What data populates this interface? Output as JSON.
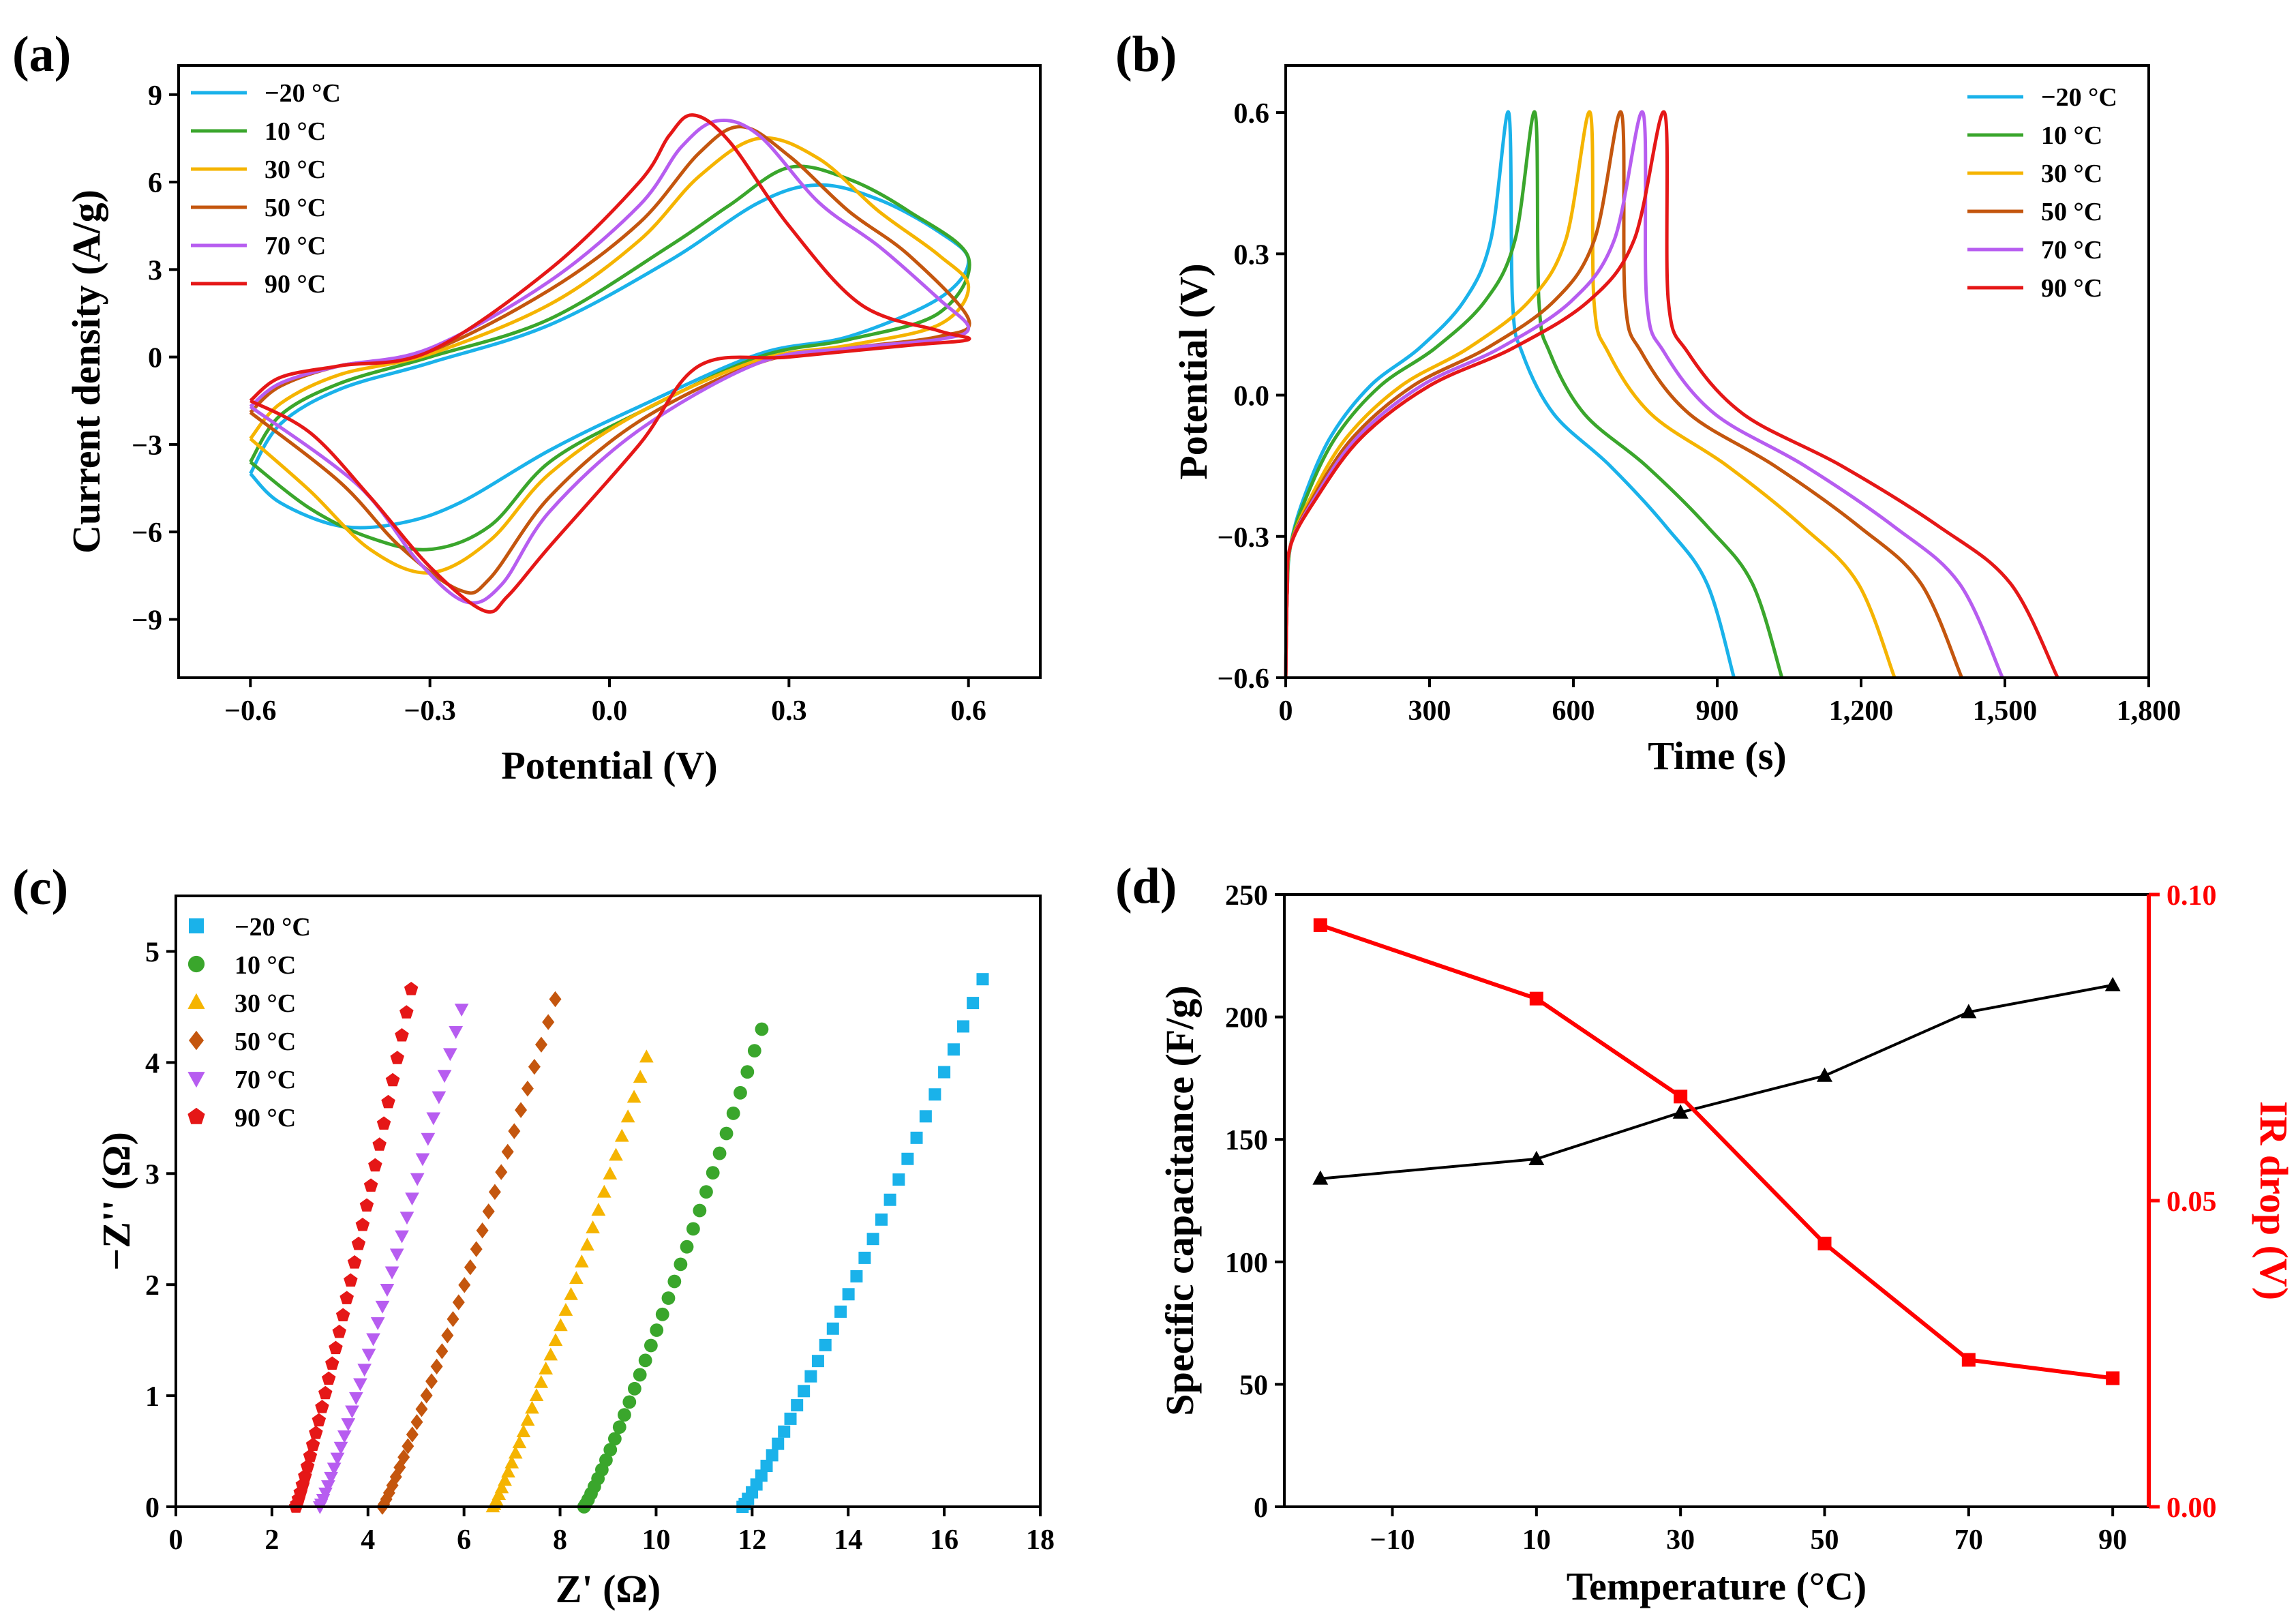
{
  "panels": {
    "a": {
      "label": "(a)"
    },
    "b": {
      "label": "(b)"
    },
    "c": {
      "label": "(c)"
    },
    "d": {
      "label": "(d)"
    }
  },
  "colors": {
    "-20": "#1ab2ea",
    "10": "#3aa62c",
    "30": "#f5b400",
    "50": "#c4560e",
    "70": "#b75df0",
    "90": "#e51717",
    "black": "#000000",
    "red": "#ff0000"
  },
  "legend_labels": [
    "−20 °C",
    "10 °C",
    "30 °C",
    "50 °C",
    "70 °C",
    "90 °C"
  ],
  "legend_labels_c": [
    " −20 °C",
    "10 °C",
    "30 °C",
    "50 °C",
    "70 °C",
    "90 °C"
  ],
  "chart_data": [
    {
      "id": "a",
      "type": "line",
      "title": "",
      "xlabel": "Potential (V)",
      "ylabel": "Current density (A/g)",
      "xlim": [
        -0.72,
        0.72
      ],
      "ylim": [
        -11,
        10
      ],
      "xticks": [
        -0.6,
        -0.3,
        0.0,
        0.3,
        0.6
      ],
      "xtick_labels": [
        "−0.6",
        "−0.3",
        "0.0",
        "0.3",
        "0.6"
      ],
      "yticks": [
        -9,
        -6,
        -3,
        0,
        3,
        6,
        9
      ],
      "ytick_labels": [
        "−9",
        "−6",
        "−3",
        "0",
        "3",
        "6",
        "9"
      ],
      "legend": "top-left",
      "series": [
        {
          "name": "−20 °C",
          "color_key": "-20",
          "anodic": [
            [
              -0.6,
              -4.0
            ],
            [
              -0.55,
              -2.3
            ],
            [
              -0.45,
              -1.1
            ],
            [
              -0.3,
              -0.2
            ],
            [
              -0.1,
              1.1
            ],
            [
              0.1,
              3.3
            ],
            [
              0.25,
              5.3
            ],
            [
              0.35,
              5.9
            ],
            [
              0.45,
              5.4
            ],
            [
              0.55,
              4.3
            ],
            [
              0.6,
              3.3
            ]
          ],
          "cathodic": [
            [
              0.6,
              3.3
            ],
            [
              0.55,
              2.0
            ],
            [
              0.4,
              0.7
            ],
            [
              0.25,
              0.1
            ],
            [
              0.05,
              -1.7
            ],
            [
              -0.1,
              -3.2
            ],
            [
              -0.25,
              -5.0
            ],
            [
              -0.35,
              -5.7
            ],
            [
              -0.45,
              -5.8
            ],
            [
              -0.55,
              -5.0
            ],
            [
              -0.6,
              -4.0
            ]
          ]
        },
        {
          "name": "10 °C",
          "color_key": "10",
          "anodic": [
            [
              -0.6,
              -3.6
            ],
            [
              -0.55,
              -2.0
            ],
            [
              -0.45,
              -0.9
            ],
            [
              -0.3,
              0.0
            ],
            [
              -0.1,
              1.3
            ],
            [
              0.1,
              3.8
            ],
            [
              0.2,
              5.2
            ],
            [
              0.3,
              6.5
            ],
            [
              0.4,
              6.1
            ],
            [
              0.5,
              5.0
            ],
            [
              0.6,
              3.4
            ]
          ],
          "cathodic": [
            [
              0.6,
              3.4
            ],
            [
              0.55,
              1.5
            ],
            [
              0.4,
              0.6
            ],
            [
              0.25,
              0.0
            ],
            [
              0.05,
              -1.9
            ],
            [
              -0.1,
              -3.6
            ],
            [
              -0.2,
              -5.8
            ],
            [
              -0.3,
              -6.6
            ],
            [
              -0.4,
              -6.2
            ],
            [
              -0.5,
              -5.2
            ],
            [
              -0.6,
              -3.6
            ]
          ]
        },
        {
          "name": "30 °C",
          "color_key": "30",
          "anodic": [
            [
              -0.6,
              -2.8
            ],
            [
              -0.55,
              -1.6
            ],
            [
              -0.45,
              -0.6
            ],
            [
              -0.3,
              0.1
            ],
            [
              -0.1,
              1.8
            ],
            [
              0.05,
              4.0
            ],
            [
              0.15,
              6.2
            ],
            [
              0.25,
              7.5
            ],
            [
              0.35,
              6.8
            ],
            [
              0.45,
              5.0
            ],
            [
              0.55,
              3.5
            ],
            [
              0.6,
              2.4
            ]
          ],
          "cathodic": [
            [
              0.6,
              2.4
            ],
            [
              0.55,
              1.1
            ],
            [
              0.4,
              0.4
            ],
            [
              0.25,
              -0.1
            ],
            [
              0.05,
              -1.9
            ],
            [
              -0.1,
              -4.0
            ],
            [
              -0.2,
              -6.3
            ],
            [
              -0.3,
              -7.4
            ],
            [
              -0.4,
              -6.6
            ],
            [
              -0.5,
              -4.6
            ],
            [
              -0.6,
              -2.8
            ]
          ]
        },
        {
          "name": "50 °C",
          "color_key": "50",
          "anodic": [
            [
              -0.6,
              -1.9
            ],
            [
              -0.55,
              -1.0
            ],
            [
              -0.45,
              -0.3
            ],
            [
              -0.3,
              0.2
            ],
            [
              -0.1,
              2.3
            ],
            [
              0.05,
              4.6
            ],
            [
              0.15,
              7.0
            ],
            [
              0.22,
              7.9
            ],
            [
              0.3,
              6.9
            ],
            [
              0.4,
              5.0
            ],
            [
              0.5,
              3.5
            ],
            [
              0.6,
              1.3
            ]
          ],
          "cathodic": [
            [
              0.6,
              1.3
            ],
            [
              0.55,
              0.7
            ],
            [
              0.4,
              0.3
            ],
            [
              0.25,
              -0.2
            ],
            [
              0.05,
              -2.2
            ],
            [
              -0.1,
              -4.8
            ],
            [
              -0.2,
              -7.6
            ],
            [
              -0.25,
              -8.0
            ],
            [
              -0.35,
              -6.5
            ],
            [
              -0.45,
              -4.3
            ],
            [
              -0.6,
              -1.9
            ]
          ]
        },
        {
          "name": "70 °C",
          "color_key": "70",
          "anodic": [
            [
              -0.6,
              -1.7
            ],
            [
              -0.55,
              -0.9
            ],
            [
              -0.45,
              -0.3
            ],
            [
              -0.3,
              0.3
            ],
            [
              -0.1,
              2.6
            ],
            [
              0.05,
              5.2
            ],
            [
              0.12,
              7.2
            ],
            [
              0.18,
              8.1
            ],
            [
              0.25,
              7.6
            ],
            [
              0.35,
              5.3
            ],
            [
              0.45,
              3.8
            ],
            [
              0.55,
              2.0
            ],
            [
              0.6,
              1.0
            ]
          ],
          "cathodic": [
            [
              0.6,
              1.0
            ],
            [
              0.55,
              0.6
            ],
            [
              0.4,
              0.3
            ],
            [
              0.25,
              -0.2
            ],
            [
              0.05,
              -2.5
            ],
            [
              -0.1,
              -5.3
            ],
            [
              -0.18,
              -7.8
            ],
            [
              -0.24,
              -8.4
            ],
            [
              -0.32,
              -7.0
            ],
            [
              -0.42,
              -4.4
            ],
            [
              -0.6,
              -1.7
            ]
          ]
        },
        {
          "name": "90 °C",
          "color_key": "90",
          "anodic": [
            [
              -0.6,
              -1.5
            ],
            [
              -0.55,
              -0.7
            ],
            [
              -0.45,
              -0.3
            ],
            [
              -0.3,
              0.2
            ],
            [
              -0.1,
              3.0
            ],
            [
              0.05,
              6.0
            ],
            [
              0.1,
              7.6
            ],
            [
              0.14,
              8.3
            ],
            [
              0.2,
              7.4
            ],
            [
              0.3,
              4.5
            ],
            [
              0.42,
              1.8
            ],
            [
              0.55,
              0.9
            ],
            [
              0.6,
              0.6
            ]
          ],
          "cathodic": [
            [
              0.6,
              0.6
            ],
            [
              0.5,
              0.4
            ],
            [
              0.3,
              0.0
            ],
            [
              0.15,
              -0.3
            ],
            [
              0.05,
              -3.0
            ],
            [
              -0.1,
              -6.5
            ],
            [
              -0.17,
              -8.2
            ],
            [
              -0.21,
              -8.7
            ],
            [
              -0.3,
              -7.2
            ],
            [
              -0.4,
              -4.8
            ],
            [
              -0.5,
              -2.6
            ],
            [
              -0.6,
              -1.5
            ]
          ]
        }
      ]
    },
    {
      "id": "b",
      "type": "line",
      "title": "",
      "xlabel": "Time (s)",
      "ylabel": "Potential (V)",
      "xlim": [
        0,
        1800
      ],
      "ylim": [
        -0.6,
        0.7
      ],
      "xticks": [
        0,
        300,
        600,
        900,
        1200,
        1500,
        1800
      ],
      "xtick_labels": [
        "0",
        "300",
        "600",
        "900",
        "1,200",
        "1,500",
        "1,800"
      ],
      "yticks": [
        -0.6,
        -0.3,
        0.0,
        0.3,
        0.6
      ],
      "ytick_labels": [
        "−0.6",
        "−0.3",
        "0.0",
        "0.3",
        "0.6"
      ],
      "legend": "top-right",
      "series": [
        {
          "name": "−20 °C",
          "color_key": "-20",
          "tc": 465,
          "tend": 935
        },
        {
          "name": "10 °C",
          "color_key": "10",
          "tc": 520,
          "tend": 1035
        },
        {
          "name": "30 °C",
          "color_key": "30",
          "tc": 635,
          "tend": 1270
        },
        {
          "name": "50 °C",
          "color_key": "50",
          "tc": 700,
          "tend": 1410
        },
        {
          "name": "70 °C",
          "color_key": "70",
          "tc": 745,
          "tend": 1495
        },
        {
          "name": "90 °C",
          "color_key": "90",
          "tc": 790,
          "tend": 1610
        }
      ]
    },
    {
      "id": "c",
      "type": "scatter",
      "title": "",
      "xlabel": "Z' (Ω)",
      "ylabel": "−Z'' (Ω)",
      "xlim": [
        0,
        18
      ],
      "ylim": [
        0,
        5.5
      ],
      "xticks": [
        0,
        2,
        4,
        6,
        8,
        10,
        12,
        14,
        16,
        18
      ],
      "yticks": [
        0,
        1,
        2,
        3,
        4,
        5
      ],
      "legend": "top-left",
      "series": [
        {
          "name": " −20 °C",
          "color_key": "-20",
          "marker": "square",
          "x0": 11.8,
          "x1": 16.8,
          "ymax": 4.75
        },
        {
          "name": "10 °C",
          "color_key": "10",
          "marker": "circle",
          "x0": 8.5,
          "x1": 12.2,
          "ymax": 4.3
        },
        {
          "name": "30 °C",
          "color_key": "30",
          "marker": "triangle-up",
          "x0": 6.6,
          "x1": 9.8,
          "ymax": 4.05
        },
        {
          "name": "50 °C",
          "color_key": "50",
          "marker": "diamond",
          "x0": 4.3,
          "x1": 7.9,
          "ymax": 4.57
        },
        {
          "name": "70 °C",
          "color_key": "70",
          "marker": "triangle-down",
          "x0": 3.0,
          "x1": 5.95,
          "ymax": 4.48
        },
        {
          "name": "90 °C",
          "color_key": "90",
          "marker": "pentagon",
          "x0": 2.5,
          "x1": 4.9,
          "ymax": 4.66
        }
      ]
    },
    {
      "id": "d",
      "type": "line",
      "title": "",
      "xlabel": "Temperature (°C)",
      "ylabel": "Specific capacitance (F/g)",
      "y2label": "IR drop (V)",
      "xlim": [
        -25,
        95
      ],
      "ylim": [
        0,
        250
      ],
      "y2lim": [
        0,
        0.1
      ],
      "xticks": [
        -10,
        10,
        30,
        50,
        70,
        90
      ],
      "xtick_labels": [
        "−10",
        "10",
        "30",
        "50",
        "70",
        "90"
      ],
      "yticks": [
        0,
        50,
        100,
        150,
        200,
        250
      ],
      "y2ticks": [
        0.0,
        0.05,
        0.1
      ],
      "y2tick_labels": [
        "0.00",
        "0.05",
        "0.10"
      ],
      "x": [
        -20,
        10,
        30,
        50,
        70,
        90
      ],
      "series": [
        {
          "name": "Specific capacitance",
          "axis": "left",
          "color_key": "black",
          "marker": "triangle-up",
          "values": [
            134,
            142,
            161,
            176,
            202,
            213
          ]
        },
        {
          "name": "IR drop",
          "axis": "right",
          "color_key": "red",
          "marker": "square",
          "values": [
            0.095,
            0.083,
            0.067,
            0.043,
            0.024,
            0.021
          ]
        }
      ]
    }
  ]
}
